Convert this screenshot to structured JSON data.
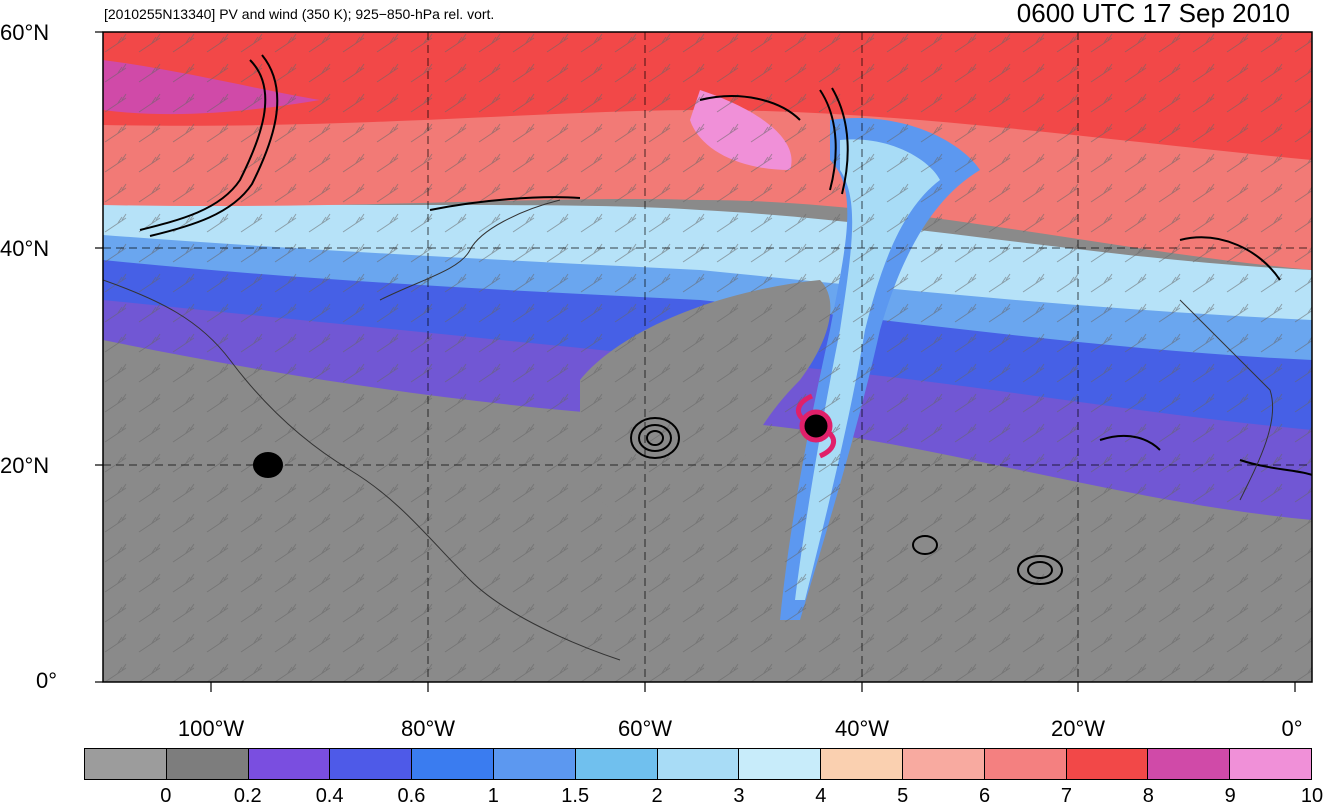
{
  "header": {
    "subtitle": "[2010255N13340] PV and wind (350 K); 925−850-hPa rel. vort.",
    "timestamp": "0600 UTC 17 Sep 2010"
  },
  "axes": {
    "lat_labels": [
      "60°N",
      "40°N",
      "20°N",
      "0°"
    ],
    "lon_labels": [
      "100°W",
      "80°W",
      "60°W",
      "40°W",
      "20°W",
      "0°"
    ]
  },
  "colorbar": {
    "colors": [
      "#9c9c9c",
      "#7d7d7d",
      "#7a4ee0",
      "#4e5ae8",
      "#3a7cf0",
      "#5c98f0",
      "#70c0ee",
      "#a8dcf6",
      "#c8ecfa",
      "#fad0b0",
      "#f8aaa0",
      "#f48080",
      "#f24848",
      "#d04aa8",
      "#f090d8"
    ],
    "labels": [
      "0",
      "0.2",
      "0.4",
      "0.6",
      "1",
      "1.5",
      "2",
      "3",
      "4",
      "5",
      "6",
      "7",
      "8",
      "9",
      "10"
    ]
  },
  "storm": {
    "symbol": "hurricane-icon",
    "color": "#e0206a"
  }
}
